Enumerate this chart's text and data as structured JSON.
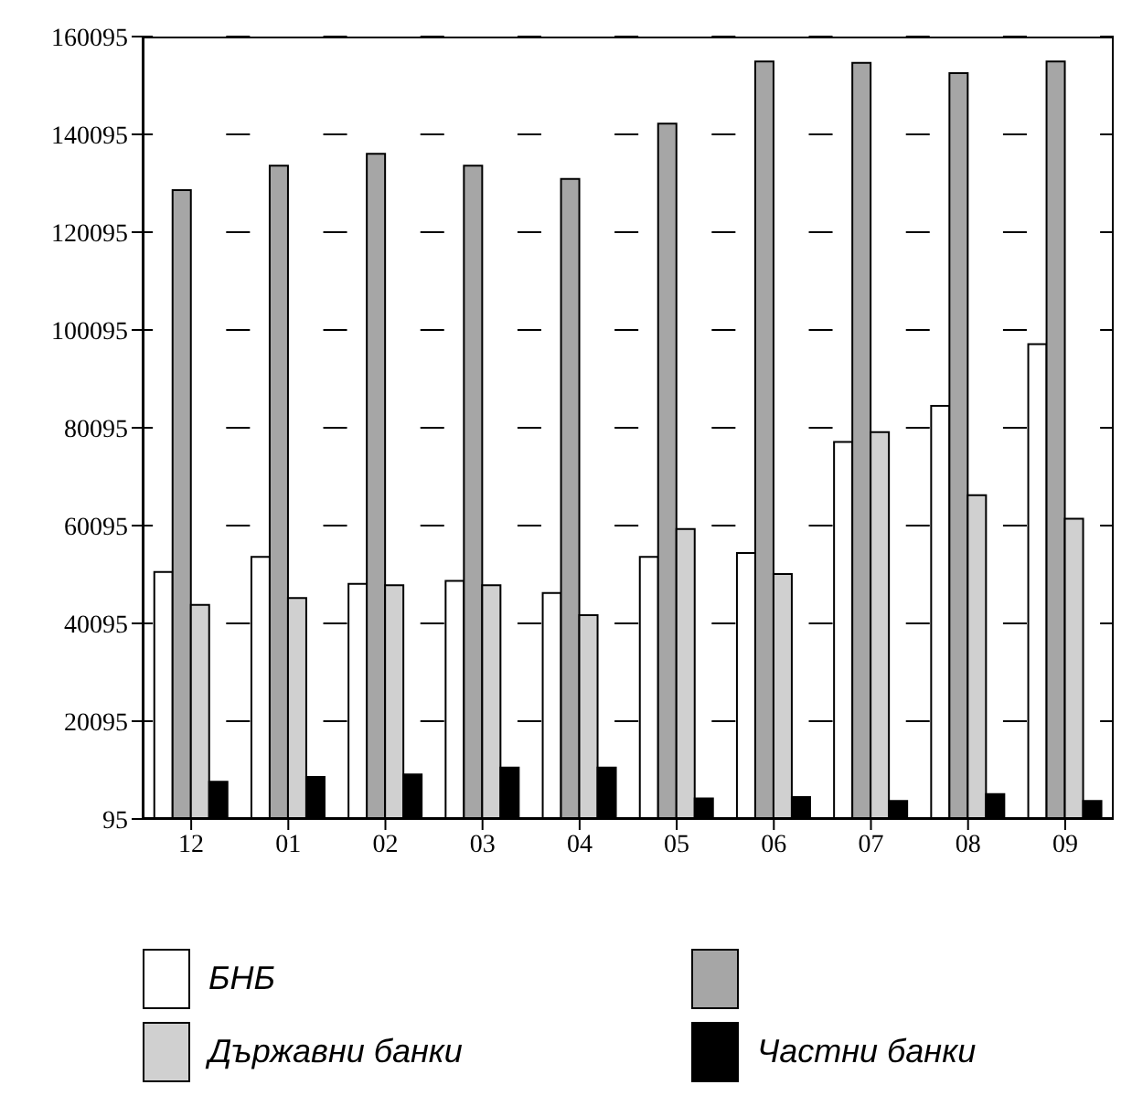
{
  "chart_data": {
    "type": "bar",
    "categories": [
      "12",
      "01",
      "02",
      "03",
      "04",
      "05",
      "06",
      "07",
      "08",
      "09"
    ],
    "series": [
      {
        "name": "БНБ",
        "color": "#ffffff",
        "values": [
          50600,
          53700,
          48200,
          48800,
          46300,
          53700,
          54500,
          77200,
          84600,
          97200
        ]
      },
      {
        "color": "#a6a6a6",
        "values": [
          128700,
          133700,
          136100,
          133700,
          131000,
          142300,
          155000,
          154700,
          152600,
          155000
        ]
      },
      {
        "name": "Държавни банки",
        "color": "#d0d0d0",
        "values": [
          43900,
          45300,
          47900,
          47900,
          41800,
          59400,
          50200,
          79200,
          66300,
          61500
        ]
      },
      {
        "name": "Частни банки",
        "color": "#000000",
        "values": [
          7700,
          8700,
          9200,
          10600,
          10600,
          4300,
          4600,
          3800,
          5200,
          3800
        ]
      }
    ],
    "ylim": [
      95,
      160095
    ],
    "yticks": [
      95,
      20095,
      40095,
      60095,
      80095,
      100095,
      120095,
      140095,
      160095
    ],
    "grid": "y",
    "legend": "bottom"
  }
}
